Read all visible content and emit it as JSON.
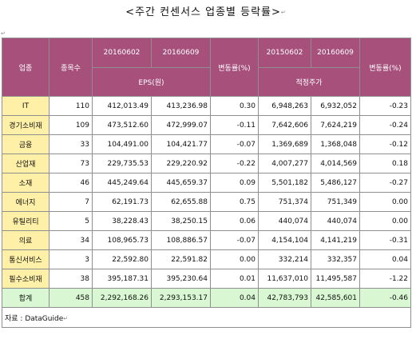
{
  "title": "<주간 컨센서스 업종별 등락률>",
  "headers": {
    "sector": "업종",
    "count": "종목수",
    "d1": "20160602",
    "d2": "20160609",
    "d3": "20150602",
    "d4": "20160609",
    "eps": "EPS(원)",
    "target": "적정주가",
    "chg": "변동률(%)"
  },
  "rows": [
    {
      "sector": "IT",
      "count": "110",
      "eps1": "412,013.49",
      "eps2": "413,236.98",
      "epsChg": "0.30",
      "tp1": "6,948,263",
      "tp2": "6,932,052",
      "tpChg": "-0.23"
    },
    {
      "sector": "경기소비재",
      "count": "109",
      "eps1": "473,512.60",
      "eps2": "472,999.07",
      "epsChg": "-0.11",
      "tp1": "7,642,606",
      "tp2": "7,624,219",
      "tpChg": "-0.24"
    },
    {
      "sector": "금융",
      "count": "33",
      "eps1": "104,491.00",
      "eps2": "104,421.77",
      "epsChg": "-0.07",
      "tp1": "1,369,689",
      "tp2": "1,368,048",
      "tpChg": "-0.12"
    },
    {
      "sector": "산업재",
      "count": "73",
      "eps1": "229,735.53",
      "eps2": "229,220.92",
      "epsChg": "-0.22",
      "tp1": "4,007,277",
      "tp2": "4,014,569",
      "tpChg": "0.18"
    },
    {
      "sector": "소재",
      "count": "46",
      "eps1": "445,249.64",
      "eps2": "445,659.37",
      "epsChg": "0.09",
      "tp1": "5,501,182",
      "tp2": "5,486,127",
      "tpChg": "-0.27"
    },
    {
      "sector": "에너지",
      "count": "7",
      "eps1": "62,191.73",
      "eps2": "62,655.88",
      "epsChg": "0.75",
      "tp1": "751,374",
      "tp2": "751,349",
      "tpChg": "0.00"
    },
    {
      "sector": "유틸리티",
      "count": "5",
      "eps1": "38,228.43",
      "eps2": "38,250.15",
      "epsChg": "0.06",
      "tp1": "440,074",
      "tp2": "440,074",
      "tpChg": "0.00"
    },
    {
      "sector": "의료",
      "count": "34",
      "eps1": "108,965.73",
      "eps2": "108,886.57",
      "epsChg": "-0.07",
      "tp1": "4,154,104",
      "tp2": "4,141,219",
      "tpChg": "-0.31"
    },
    {
      "sector": "통신서비스",
      "count": "3",
      "eps1": "22,592.80",
      "eps2": "22,591.82",
      "epsChg": "0.00",
      "tp1": "332,214",
      "tp2": "332,357",
      "tpChg": "0.04"
    },
    {
      "sector": "필수소비재",
      "count": "38",
      "eps1": "395,187.31",
      "eps2": "395,230.64",
      "epsChg": "0.01",
      "tp1": "11,637,010",
      "tp2": "11,495,587",
      "tpChg": "-1.22"
    }
  ],
  "total": {
    "sector": "합계",
    "count": "458",
    "eps1": "2,292,168.26",
    "eps2": "2,293,153.17",
    "epsChg": "0.04",
    "tp1": "42,783,793",
    "tp2": "42,585,601",
    "tpChg": "-0.46"
  },
  "source": "자료 : DataGuide",
  "colors": {
    "header": "#a7507c",
    "sector_cell": "#fff0a8",
    "total_row": "#d9f7d2"
  }
}
